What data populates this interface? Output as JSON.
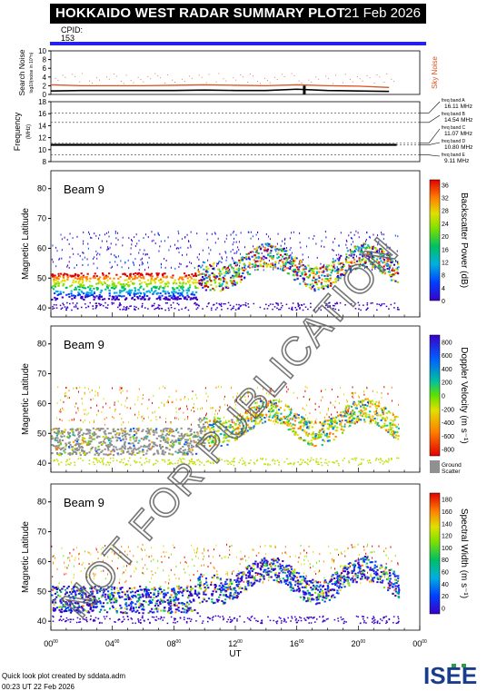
{
  "header": {
    "title": "HOKKAIDO WEST RADAR SUMMARY PLOT",
    "date": "21 Feb 2026",
    "cpid_label": "CPID:",
    "cpid_value": "153"
  },
  "footer": {
    "created": "Quick look plot created by sddata.adm",
    "timestamp": "00:23 UT 22 Feb 2026"
  },
  "logo_text": "ISEE",
  "watermark": "NOT FOR PUBLICATION",
  "colors": {
    "cpid_bar": "#2222ee",
    "sky_noise": "#e05020",
    "search_noise": "#000000"
  },
  "chart_data": [
    {
      "type": "line",
      "panel": "noise",
      "ylabel": "Search Noise",
      "ylabel_units": "log10(noise in 10^n)",
      "right_label": "Sky Noise",
      "yticks": [
        "0",
        "2",
        "4",
        "6",
        "8",
        "10"
      ],
      "ylim": [
        0,
        10
      ],
      "series": [
        {
          "name": "Sky Noise",
          "x": [
            0,
            2,
            4,
            6,
            8,
            10,
            12,
            14,
            16,
            18,
            20,
            22
          ],
          "y": [
            2.2,
            2.0,
            2.0,
            2.0,
            2.1,
            2.2,
            2.1,
            2.0,
            2.2,
            2.0,
            1.9,
            1.6
          ]
        },
        {
          "name": "Search Noise",
          "x": [
            0,
            2,
            4,
            6,
            8,
            10,
            12,
            14,
            16,
            18,
            20,
            22
          ],
          "y": [
            0.8,
            0.9,
            0.9,
            0.9,
            0.9,
            1.0,
            0.9,
            0.9,
            1.2,
            0.9,
            0.8,
            0.7
          ]
        }
      ]
    },
    {
      "type": "line",
      "panel": "frequency",
      "ylabel": "Frequency",
      "ylabel_units": "(MHz)",
      "yticks": [
        "8",
        "10",
        "12",
        "14",
        "16",
        "18"
      ],
      "ylim": [
        8,
        18
      ],
      "band_labels": [
        "freq band A\n16.11 MHz",
        "freq band B\n14.54 MHz",
        "freq band C\n11.07 MHz",
        "freq band D\n10.80 MHz",
        "freq band E\n9.11 MHz"
      ],
      "band_values": [
        16.11,
        14.54,
        11.07,
        10.8,
        9.11
      ],
      "series": [
        {
          "name": "Operating frequency",
          "x": [
            0,
            22.5
          ],
          "y": [
            10.8,
            10.8
          ]
        }
      ]
    },
    {
      "type": "heatmap",
      "panel": "power",
      "beam_label": "Beam  9",
      "ylabel": "Magnetic Latitude",
      "yticks": [
        "40",
        "50",
        "60",
        "70",
        "80"
      ],
      "ylim": [
        37,
        86
      ],
      "colorbar_label": "Backscatter Power (dB)",
      "colorbar_ticks": [
        "0",
        "4",
        "8",
        "12",
        "16",
        "20",
        "24",
        "28",
        "32",
        "36"
      ]
    },
    {
      "type": "heatmap",
      "panel": "velocity",
      "beam_label": "Beam  9",
      "ylabel": "Magnetic Latitude",
      "yticks": [
        "40",
        "50",
        "60",
        "70",
        "80"
      ],
      "ylim": [
        37,
        86
      ],
      "colorbar_label": "Doppler Velocity (m s⁻¹)",
      "colorbar_ticks": [
        "800",
        "600",
        "400",
        "200",
        "0",
        "-200",
        "-400",
        "-600",
        "-800"
      ],
      "ground_label": "Ground",
      "ground_label2": "Scatter"
    },
    {
      "type": "heatmap",
      "panel": "width",
      "beam_label": "Beam  9",
      "ylabel": "Magnetic Latitude",
      "yticks": [
        "40",
        "50",
        "60",
        "70",
        "80"
      ],
      "ylim": [
        37,
        86
      ],
      "colorbar_label": "Spectral Width (m s⁻¹)",
      "colorbar_ticks": [
        "180",
        "160",
        "140",
        "120",
        "100",
        "80",
        "60",
        "40",
        "20",
        "0"
      ]
    }
  ],
  "x_axis": {
    "xlabel": "UT",
    "ticks": [
      "00",
      "04",
      "08",
      "12",
      "16",
      "20",
      "00"
    ],
    "tick_sup": "00"
  }
}
